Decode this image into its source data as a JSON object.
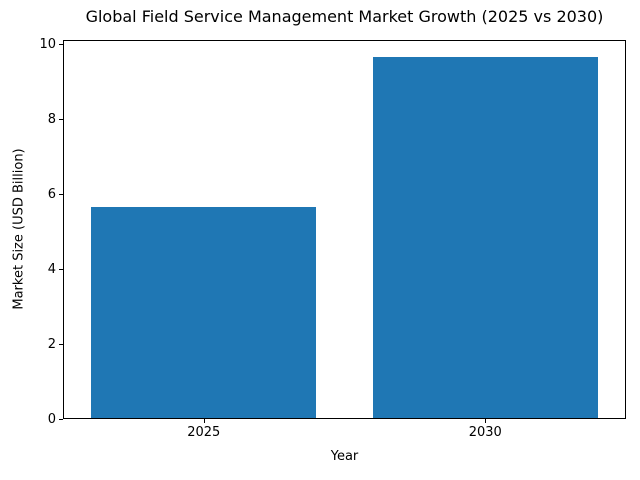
{
  "chart_data": {
    "type": "bar",
    "title": "Global Field Service Management Market Growth (2025 vs 2030)",
    "xlabel": "Year",
    "ylabel": "Market Size (USD Billion)",
    "categories": [
      "2025",
      "2030"
    ],
    "values": [
      5.66,
      9.68
    ],
    "yticks": [
      0,
      2,
      4,
      6,
      8,
      10
    ],
    "ylim": [
      0,
      10.11
    ],
    "bar_width_fraction": 0.8,
    "bar_color": "#1f77b4",
    "axis_color": "#000000",
    "background_color": "#ffffff",
    "grid": false,
    "legend": "none"
  }
}
